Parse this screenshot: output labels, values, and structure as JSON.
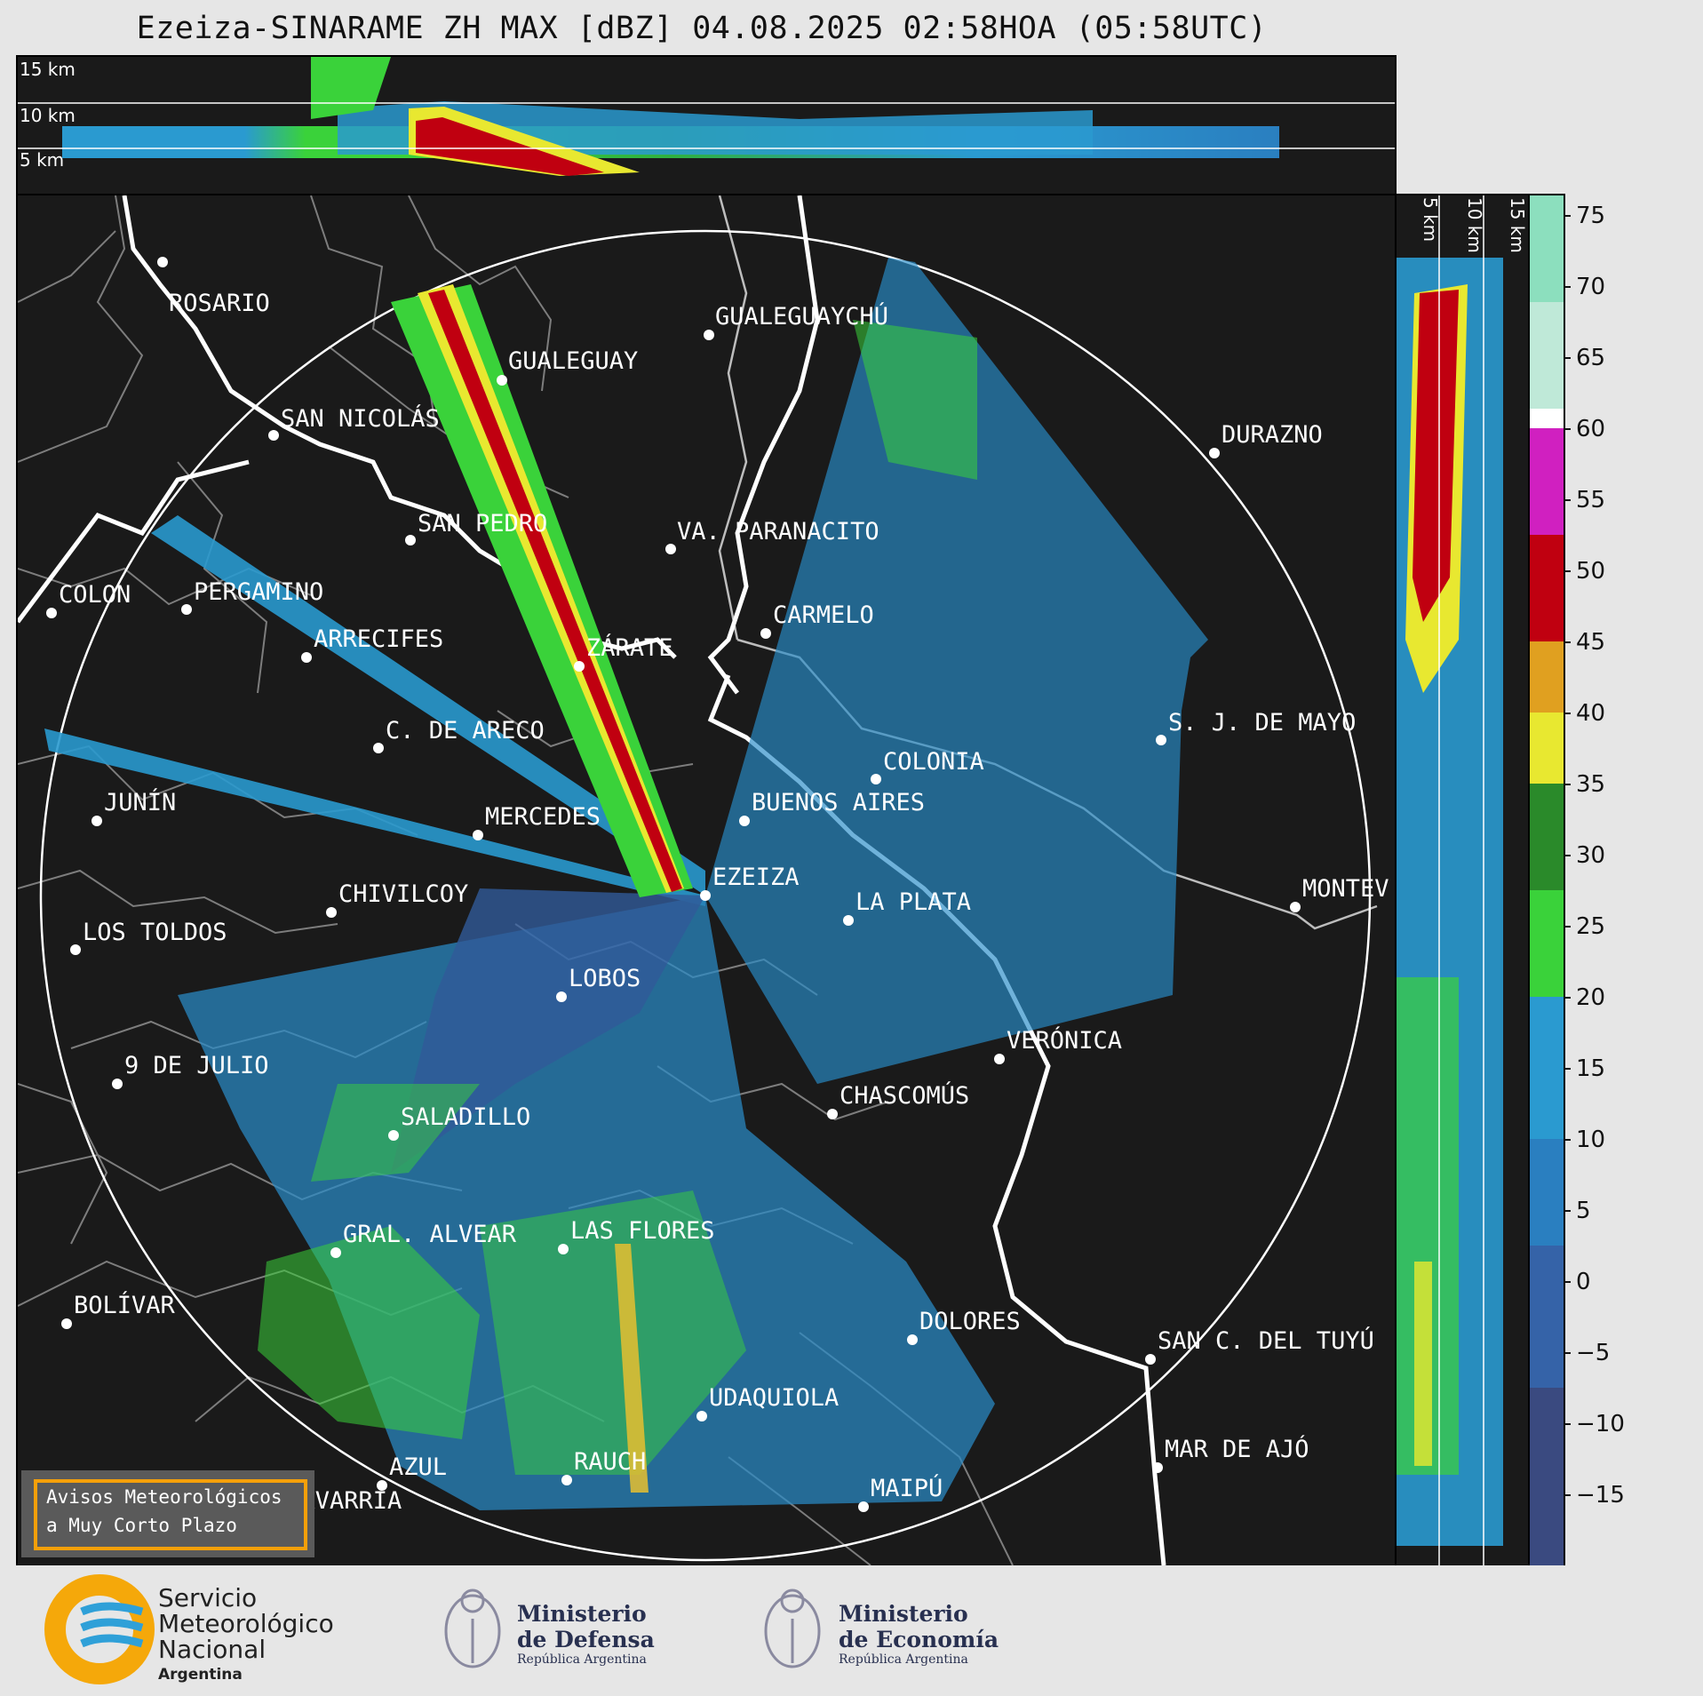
{
  "title": "Ezeiza-SINARAME ZH MAX [dBZ] 04.08.2025 02:58HOA (05:58UTC)",
  "height_labels": [
    "15 km",
    "10 km",
    "5 km"
  ],
  "side_height_labels": [
    "5 km",
    "10 km",
    "15 km"
  ],
  "colorbar": {
    "unit": "dBZ",
    "ticks": [
      "75",
      "70",
      "65",
      "60",
      "55",
      "50",
      "45",
      "40",
      "35",
      "30",
      "25",
      "20",
      "15",
      "10",
      "5",
      "0",
      "−5",
      "−10",
      "−15"
    ]
  },
  "cities": [
    "ROSARIO",
    "GUALEGUAYCHÚ",
    "GUALEGUAY",
    "SAN NICOLÁS",
    "DURAZNO",
    "SAN PEDRO",
    "VA. PARANACITO",
    "COLON",
    "PERGAMINO",
    "CARMELO",
    "ARRECIFES",
    "ZÁRATE",
    "C. DE ARECO",
    "S. J. DE MAYO",
    "COLONIA",
    "JUNÍN",
    "MERCEDES",
    "BUENOS AIRES",
    "EZEIZA",
    "MONTEV",
    "CHIVILCOY",
    "LA PLATA",
    "LOS TOLDOS",
    "LOBOS",
    "VERÓNICA",
    "9 DE JULIO",
    "CHASCOMÚS",
    "SALADILLO",
    "GRAL. ALVEAR",
    "LAS FLORES",
    "BOLÍVAR",
    "DOLORES",
    "SAN C. DEL TUYÚ",
    "UDAQUIOLA",
    "MAR DE AJÓ",
    "AZUL",
    "RAUCH",
    "OLAVARRÍA",
    "MAIPÚ"
  ],
  "avisos": {
    "line1": "Avisos Meteorológicos",
    "line2": "a Muy Corto Plazo"
  },
  "logos": {
    "smn": {
      "line1": "Servicio",
      "line2": "Meteorológico",
      "line3": "Nacional",
      "line4": "Argentina"
    },
    "defensa": {
      "line1": "Ministerio",
      "line2": "de Defensa",
      "line3": "República Argentina"
    },
    "economia": {
      "line1": "Ministerio",
      "line2": "de Economía",
      "line3": "República Argentina"
    }
  },
  "colors": {
    "background": "#1a1a1a",
    "coast": "#ffffff",
    "borders": "#808080",
    "echo_light": "#2a9ad0",
    "echo_green": "#3ad23a",
    "echo_red": "#c00010",
    "echo_yellow": "#e8e830"
  }
}
